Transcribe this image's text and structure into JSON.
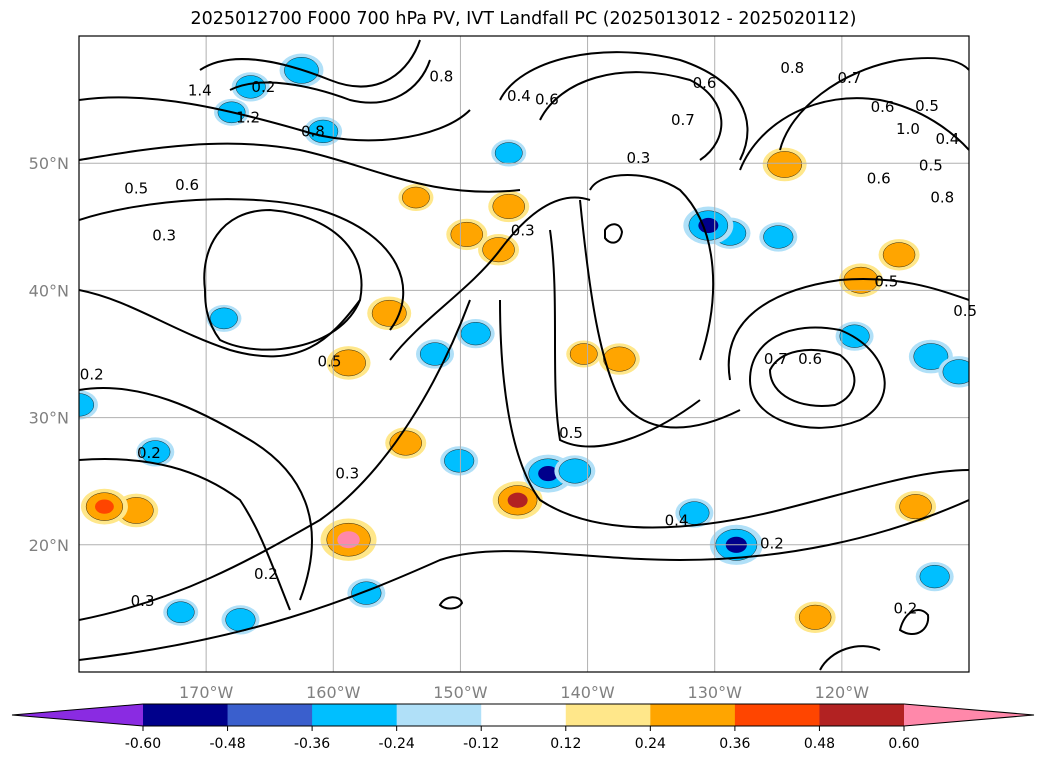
{
  "title": "2025012700 F000 700 hPa PV, IVT Landfall PC (2025013012 - 2025020112)",
  "chart_data": {
    "type": "contour map",
    "map": {
      "lon_range": [
        -180,
        -110
      ],
      "lat_range": [
        10,
        60
      ],
      "gridlines": true,
      "x_ticks": [
        {
          "lon": -170,
          "label": "170°W"
        },
        {
          "lon": -160,
          "label": "160°W"
        },
        {
          "lon": -150,
          "label": "150°W"
        },
        {
          "lon": -140,
          "label": "140°W"
        },
        {
          "lon": -130,
          "label": "130°W"
        },
        {
          "lon": -120,
          "label": "120°W"
        }
      ],
      "y_ticks": [
        {
          "lat": 20,
          "label": "20°N"
        },
        {
          "lat": 30,
          "label": "30°N"
        },
        {
          "lat": 40,
          "label": "40°N"
        },
        {
          "lat": 50,
          "label": "50°N"
        }
      ]
    },
    "colorbar": {
      "levels": [
        -0.72,
        -0.6,
        -0.48,
        -0.36,
        -0.24,
        -0.12,
        0.12,
        0.24,
        0.36,
        0.48,
        0.6,
        0.72
      ],
      "tick_labels": [
        "-0.60",
        "-0.48",
        "-0.36",
        "-0.24",
        "-0.12",
        "0.12",
        "0.24",
        "0.36",
        "0.48",
        "0.60"
      ],
      "tick_values": [
        -0.6,
        -0.48,
        -0.36,
        -0.24,
        -0.12,
        0.12,
        0.24,
        0.36,
        0.48,
        0.6
      ],
      "colors": [
        "#7b2fc9",
        "#8a2be2",
        "#00008b",
        "#3a5fcd",
        "#00bfff",
        "#b0e0f8",
        "#ffffff",
        "#ffe78a",
        "#ffa500",
        "#ff4500",
        "#b22222",
        "#ff88aa",
        "#ff88aa"
      ],
      "extend": "both"
    },
    "pv_contour_labels": [
      {
        "lon": -175.5,
        "lat": 48.0,
        "text": "0.5"
      },
      {
        "lon": -171.5,
        "lat": 48.3,
        "text": "0.6"
      },
      {
        "lon": -173.3,
        "lat": 44.3,
        "text": "0.3"
      },
      {
        "lon": -166.7,
        "lat": 53.6,
        "text": "1.2"
      },
      {
        "lon": -170.5,
        "lat": 55.7,
        "text": "1.4"
      },
      {
        "lon": -165.5,
        "lat": 56.0,
        "text": "0.2"
      },
      {
        "lon": -161.6,
        "lat": 52.5,
        "text": "0.8"
      },
      {
        "lon": -151.5,
        "lat": 56.8,
        "text": "0.8"
      },
      {
        "lon": -143.2,
        "lat": 55.0,
        "text": "0.6"
      },
      {
        "lon": -136.0,
        "lat": 50.4,
        "text": "0.3"
      },
      {
        "lon": -132.5,
        "lat": 53.4,
        "text": "0.7"
      },
      {
        "lon": -130.8,
        "lat": 56.3,
        "text": "0.6"
      },
      {
        "lon": -123.9,
        "lat": 57.5,
        "text": "0.8"
      },
      {
        "lon": -119.4,
        "lat": 56.7,
        "text": "0.7"
      },
      {
        "lon": -116.8,
        "lat": 54.4,
        "text": "0.6"
      },
      {
        "lon": -113.3,
        "lat": 54.5,
        "text": "0.5"
      },
      {
        "lon": -111.7,
        "lat": 51.9,
        "text": "0.4"
      },
      {
        "lon": -114.8,
        "lat": 52.7,
        "text": "1.0"
      },
      {
        "lon": -113.0,
        "lat": 49.8,
        "text": "0.5"
      },
      {
        "lon": -112.1,
        "lat": 47.3,
        "text": "0.8"
      },
      {
        "lon": -117.1,
        "lat": 48.8,
        "text": "0.6"
      },
      {
        "lon": -145.4,
        "lat": 55.3,
        "text": "0.4"
      },
      {
        "lon": -145.1,
        "lat": 44.7,
        "text": "0.3"
      },
      {
        "lon": -116.5,
        "lat": 40.7,
        "text": "0.5"
      },
      {
        "lon": -122.5,
        "lat": 34.6,
        "text": "0.6"
      },
      {
        "lon": -125.2,
        "lat": 34.6,
        "text": "0.7"
      },
      {
        "lon": -160.3,
        "lat": 34.4,
        "text": "0.5"
      },
      {
        "lon": -179.0,
        "lat": 33.4,
        "text": "0.2"
      },
      {
        "lon": -174.5,
        "lat": 27.2,
        "text": "0.2"
      },
      {
        "lon": -158.9,
        "lat": 25.6,
        "text": "0.3"
      },
      {
        "lon": -175.0,
        "lat": 15.6,
        "text": "0.3"
      },
      {
        "lon": -165.3,
        "lat": 17.7,
        "text": "0.2"
      },
      {
        "lon": -141.3,
        "lat": 28.8,
        "text": "0.5"
      },
      {
        "lon": -133.0,
        "lat": 21.9,
        "text": "0.4"
      },
      {
        "lon": -125.5,
        "lat": 20.1,
        "text": "0.2"
      },
      {
        "lon": -115.0,
        "lat": 15.0,
        "text": "0.2"
      },
      {
        "lon": -110.3,
        "lat": 38.4,
        "text": "0.5"
      }
    ],
    "pc_anomaly_patches": [
      {
        "lon": -166.5,
        "lat": 56.0,
        "value": -0.3
      },
      {
        "lon": -162.5,
        "lat": 57.3,
        "value": -0.4
      },
      {
        "lon": -168.0,
        "lat": 54.0,
        "value": -0.25
      },
      {
        "lon": -160.8,
        "lat": 52.5,
        "value": -0.3
      },
      {
        "lon": -124.5,
        "lat": 49.9,
        "value": 0.4
      },
      {
        "lon": -128.8,
        "lat": 44.5,
        "value": -0.35
      },
      {
        "lon": -125.0,
        "lat": 44.2,
        "value": -0.3
      },
      {
        "lon": -146.2,
        "lat": 46.6,
        "value": 0.35
      },
      {
        "lon": -149.5,
        "lat": 44.4,
        "value": 0.35
      },
      {
        "lon": -147.0,
        "lat": 43.2,
        "value": 0.35
      },
      {
        "lon": -115.5,
        "lat": 42.8,
        "value": 0.35
      },
      {
        "lon": -118.5,
        "lat": 40.8,
        "value": 0.4
      },
      {
        "lon": -155.6,
        "lat": 38.2,
        "value": 0.4
      },
      {
        "lon": -158.8,
        "lat": 34.3,
        "value": 0.4
      },
      {
        "lon": -152.0,
        "lat": 35.0,
        "value": -0.3
      },
      {
        "lon": -148.8,
        "lat": 36.6,
        "value": -0.3
      },
      {
        "lon": -168.6,
        "lat": 37.8,
        "value": -0.25
      },
      {
        "lon": -119.0,
        "lat": 36.4,
        "value": -0.3
      },
      {
        "lon": -113.0,
        "lat": 34.8,
        "value": -0.4
      },
      {
        "lon": -110.8,
        "lat": 33.6,
        "value": -0.35
      },
      {
        "lon": -180.0,
        "lat": 31.0,
        "value": -0.3
      },
      {
        "lon": -174.0,
        "lat": 27.3,
        "value": -0.3
      },
      {
        "lon": -175.5,
        "lat": 22.7,
        "value": 0.4
      },
      {
        "lon": -178.0,
        "lat": 23.0,
        "value": 0.45
      },
      {
        "lon": -154.3,
        "lat": 28.0,
        "value": 0.35
      },
      {
        "lon": -150.1,
        "lat": 26.6,
        "value": -0.3
      },
      {
        "lon": -145.5,
        "lat": 23.5,
        "value": 0.5
      },
      {
        "lon": -143.1,
        "lat": 25.6,
        "value": -0.5
      },
      {
        "lon": -141.0,
        "lat": 25.8,
        "value": -0.35
      },
      {
        "lon": -158.8,
        "lat": 20.4,
        "value": 0.6
      },
      {
        "lon": -157.4,
        "lat": 16.2,
        "value": -0.3
      },
      {
        "lon": -131.6,
        "lat": 22.5,
        "value": -0.3
      },
      {
        "lon": -128.3,
        "lat": 20.0,
        "value": -0.55
      },
      {
        "lon": -114.2,
        "lat": 23.0,
        "value": 0.35
      },
      {
        "lon": -112.7,
        "lat": 17.5,
        "value": -0.3
      },
      {
        "lon": -167.3,
        "lat": 14.1,
        "value": -0.3
      },
      {
        "lon": -172.0,
        "lat": 14.7,
        "value": -0.25
      },
      {
        "lon": -137.5,
        "lat": 34.6,
        "value": 0.35
      },
      {
        "lon": -140.3,
        "lat": 35.0,
        "value": 0.25
      },
      {
        "lon": -122.1,
        "lat": 14.3,
        "value": 0.35
      },
      {
        "lon": -153.5,
        "lat": 47.3,
        "value": 0.25
      },
      {
        "lon": -146.2,
        "lat": 50.8,
        "value": -0.25
      },
      {
        "lon": -130.5,
        "lat": 45.1,
        "value": -0.5
      }
    ]
  }
}
